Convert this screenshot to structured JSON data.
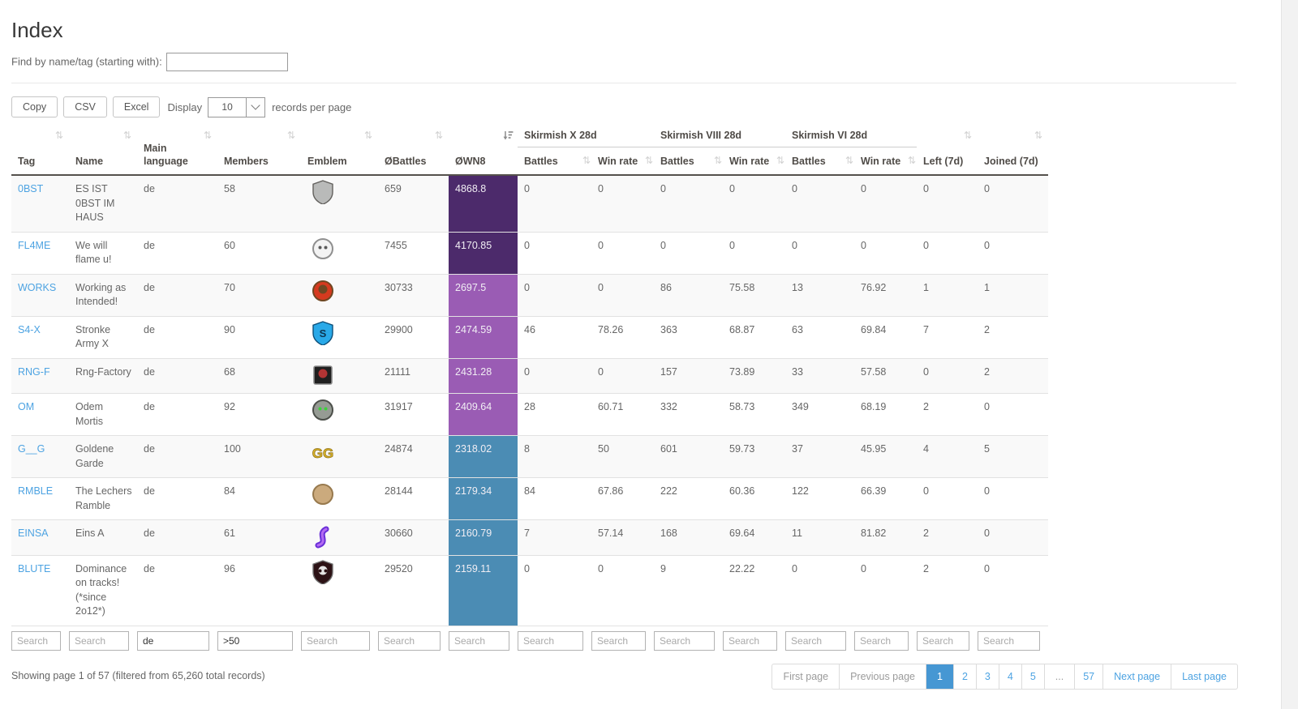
{
  "header": {
    "title": "Index",
    "find_label": "Find by name/tag (starting with):",
    "find_value": ""
  },
  "toolbar": {
    "copy_label": "Copy",
    "csv_label": "CSV",
    "excel_label": "Excel",
    "display_label": "Display",
    "page_size": "10",
    "records_per_page_label": "records per page"
  },
  "table": {
    "groups": [
      "Skirmish X 28d",
      "Skirmish VIII 28d",
      "Skirmish VI 28d"
    ],
    "columns": [
      {
        "label": "Tag",
        "sort": "both"
      },
      {
        "label": "Name",
        "sort": "both"
      },
      {
        "label": "Main language",
        "sort": "both"
      },
      {
        "label": "Members",
        "sort": "both"
      },
      {
        "label": "Emblem",
        "sort": "both"
      },
      {
        "label": "ØBattles",
        "sort": "both"
      },
      {
        "label": "ØWN8",
        "sort": "desc"
      },
      {
        "label": "Battles",
        "sort": "both"
      },
      {
        "label": "Win rate",
        "sort": "both"
      },
      {
        "label": "Battles",
        "sort": "both"
      },
      {
        "label": "Win rate",
        "sort": "both"
      },
      {
        "label": "Battles",
        "sort": "both"
      },
      {
        "label": "Win rate",
        "sort": "both"
      },
      {
        "label": "Left (7d)",
        "sort": "both"
      },
      {
        "label": "Joined (7d)",
        "sort": "both"
      }
    ],
    "filters": [
      {
        "placeholder": "Search",
        "value": ""
      },
      {
        "placeholder": "Search",
        "value": ""
      },
      {
        "placeholder": "Search",
        "value": "de"
      },
      {
        "placeholder": "Search",
        "value": ">50"
      },
      {
        "placeholder": "Search",
        "value": ""
      },
      {
        "placeholder": "Search",
        "value": ""
      },
      {
        "placeholder": "Search",
        "value": ""
      },
      {
        "placeholder": "Search",
        "value": ""
      },
      {
        "placeholder": "Search",
        "value": ""
      },
      {
        "placeholder": "Search",
        "value": ""
      },
      {
        "placeholder": "Search",
        "value": ""
      },
      {
        "placeholder": "Search",
        "value": ""
      },
      {
        "placeholder": "Search",
        "value": ""
      },
      {
        "placeholder": "Search",
        "value": ""
      },
      {
        "placeholder": "Search",
        "value": ""
      }
    ],
    "rows": [
      {
        "tag": "0BST",
        "name": "ES IST 0BST IM HAUS",
        "language": "de",
        "members": "58",
        "emblem": {
          "shape": "shield",
          "c1": "#b9bab9",
          "c2": "#63615e",
          "desc": "gray shield with arrow emblem"
        },
        "avg_battles": "659",
        "wn8": "4868.8",
        "wn8_color": "#4c2a6b",
        "sk10_battles": "0",
        "sk10_wr": "0",
        "sk8_battles": "0",
        "sk8_wr": "0",
        "sk6_battles": "0",
        "sk6_wr": "0",
        "left_7d": "0",
        "joined_7d": "0"
      },
      {
        "tag": "FL4ME",
        "name": "We will flame u!",
        "language": "de",
        "members": "60",
        "emblem": {
          "shape": "circle",
          "c1": "#f3f3f3",
          "c2": "#8f8f8f",
          "eyes": "#5a5a5a",
          "desc": "white skull emblem"
        },
        "avg_battles": "7455",
        "wn8": "4170.85",
        "wn8_color": "#4c2a6b",
        "sk10_battles": "0",
        "sk10_wr": "0",
        "sk8_battles": "0",
        "sk8_wr": "0",
        "sk6_battles": "0",
        "sk6_wr": "0",
        "left_7d": "0",
        "joined_7d": "0"
      },
      {
        "tag": "WORKS",
        "name": "Working as Intended!",
        "language": "de",
        "members": "70",
        "emblem": {
          "shape": "circle",
          "c1": "#d63a1f",
          "c2": "#6f4722",
          "inner": "#6f4722",
          "desc": "red and brown bird emblem"
        },
        "avg_battles": "30733",
        "wn8": "2697.5",
        "wn8_color": "#9a5cb4",
        "sk10_battles": "0",
        "sk10_wr": "0",
        "sk8_battles": "86",
        "sk8_wr": "75.58",
        "sk6_battles": "13",
        "sk6_wr": "76.92",
        "left_7d": "1",
        "joined_7d": "1"
      },
      {
        "tag": "S4-X",
        "name": "Stronke Army X",
        "language": "de",
        "members": "90",
        "emblem": {
          "shape": "shield",
          "c1": "#29a9e8",
          "c2": "#0d4f79",
          "letter": "S",
          "letter_color": "#0d3550",
          "desc": "blue shield with S emblem"
        },
        "avg_battles": "29900",
        "wn8": "2474.59",
        "wn8_color": "#9a5cb4",
        "sk10_battles": "46",
        "sk10_wr": "78.26",
        "sk8_battles": "363",
        "sk8_wr": "68.87",
        "sk6_battles": "63",
        "sk6_wr": "69.84",
        "left_7d": "7",
        "joined_7d": "2"
      },
      {
        "tag": "RNG-F",
        "name": "Rng-Factory",
        "language": "de",
        "members": "68",
        "emblem": {
          "shape": "square",
          "c1": "#1f1f1f",
          "c2": "#8a8a8a",
          "inner": "#b23434",
          "desc": "dark square with red brain emblem"
        },
        "avg_battles": "21111",
        "wn8": "2431.28",
        "wn8_color": "#9a5cb4",
        "sk10_battles": "0",
        "sk10_wr": "0",
        "sk8_battles": "157",
        "sk8_wr": "73.89",
        "sk6_battles": "33",
        "sk6_wr": "57.58",
        "left_7d": "0",
        "joined_7d": "2"
      },
      {
        "tag": "OM",
        "name": "Odem Mortis",
        "language": "de",
        "members": "92",
        "emblem": {
          "shape": "circle",
          "c1": "#969b94",
          "c2": "#4c4f4a",
          "eyes": "#3bd23b",
          "desc": "gray skull with green eyes emblem"
        },
        "avg_battles": "31917",
        "wn8": "2409.64",
        "wn8_color": "#9a5cb4",
        "sk10_battles": "28",
        "sk10_wr": "60.71",
        "sk8_battles": "332",
        "sk8_wr": "58.73",
        "sk6_battles": "349",
        "sk6_wr": "68.19",
        "left_7d": "2",
        "joined_7d": "0"
      },
      {
        "tag": "G__G",
        "name": "Goldene Garde",
        "language": "de",
        "members": "100",
        "emblem": {
          "shape": "text",
          "c1": "#d9b32a",
          "c2": "#8a6c12",
          "letter": "GG",
          "desc": "golden GG crown emblem"
        },
        "avg_battles": "24874",
        "wn8": "2318.02",
        "wn8_color": "#4b8cb4",
        "sk10_battles": "8",
        "sk10_wr": "50",
        "sk8_battles": "601",
        "sk8_wr": "59.73",
        "sk6_battles": "37",
        "sk6_wr": "45.95",
        "left_7d": "4",
        "joined_7d": "5"
      },
      {
        "tag": "RMBLE",
        "name": "The Lechers Ramble",
        "language": "de",
        "members": "84",
        "emblem": {
          "shape": "circle",
          "c1": "#cbaa7d",
          "c2": "#97794d",
          "desc": "tan camel emblem"
        },
        "avg_battles": "28144",
        "wn8": "2179.34",
        "wn8_color": "#4b8cb4",
        "sk10_battles": "84",
        "sk10_wr": "67.86",
        "sk8_battles": "222",
        "sk8_wr": "60.36",
        "sk6_battles": "122",
        "sk6_wr": "66.39",
        "left_7d": "0",
        "joined_7d": "0"
      },
      {
        "tag": "EINSA",
        "name": "Eins A",
        "language": "de",
        "members": "61",
        "emblem": {
          "shape": "squiggle",
          "c1": "#b36cf2",
          "c2": "#6a2fd8",
          "desc": "purple and blue squiggle emblem"
        },
        "avg_battles": "30660",
        "wn8": "2160.79",
        "wn8_color": "#4b8cb4",
        "sk10_battles": "7",
        "sk10_wr": "57.14",
        "sk8_battles": "168",
        "sk8_wr": "69.64",
        "sk6_battles": "11",
        "sk6_wr": "81.82",
        "left_7d": "2",
        "joined_7d": "0"
      },
      {
        "tag": "BLUTE",
        "name": "Dominance on tracks! (*since 2o12*)",
        "language": "de",
        "members": "96",
        "emblem": {
          "shape": "shield",
          "c1": "#2c1215",
          "c2": "#6e6e6e",
          "inner": "#e4e4e4",
          "eyes": "#2c1215",
          "desc": "dark shield with white skull emblem"
        },
        "avg_battles": "29520",
        "wn8": "2159.11",
        "wn8_color": "#4b8cb4",
        "sk10_battles": "0",
        "sk10_wr": "0",
        "sk8_battles": "9",
        "sk8_wr": "22.22",
        "sk6_battles": "0",
        "sk6_wr": "0",
        "left_7d": "2",
        "joined_7d": "0"
      }
    ]
  },
  "summary": "Showing page 1 of 57 (filtered from 65,260 total records)",
  "pagination": {
    "items": [
      {
        "label": "First page",
        "type": "disabled"
      },
      {
        "label": "Previous page",
        "type": "disabled"
      },
      {
        "label": "1",
        "type": "active"
      },
      {
        "label": "2",
        "type": "num"
      },
      {
        "label": "3",
        "type": "num"
      },
      {
        "label": "4",
        "type": "num"
      },
      {
        "label": "5",
        "type": "num"
      },
      {
        "label": "...",
        "type": "ellipsis"
      },
      {
        "label": "57",
        "type": "num"
      },
      {
        "label": "Next page",
        "type": "link"
      },
      {
        "label": "Last page",
        "type": "link"
      }
    ]
  },
  "colors": {
    "link": "#4da3e2",
    "wn8_super_unicum": "#4c2a6b",
    "wn8_unicum": "#9a5cb4",
    "wn8_great": "#4b8cb4",
    "pagination_active_bg": "#4697d3"
  }
}
